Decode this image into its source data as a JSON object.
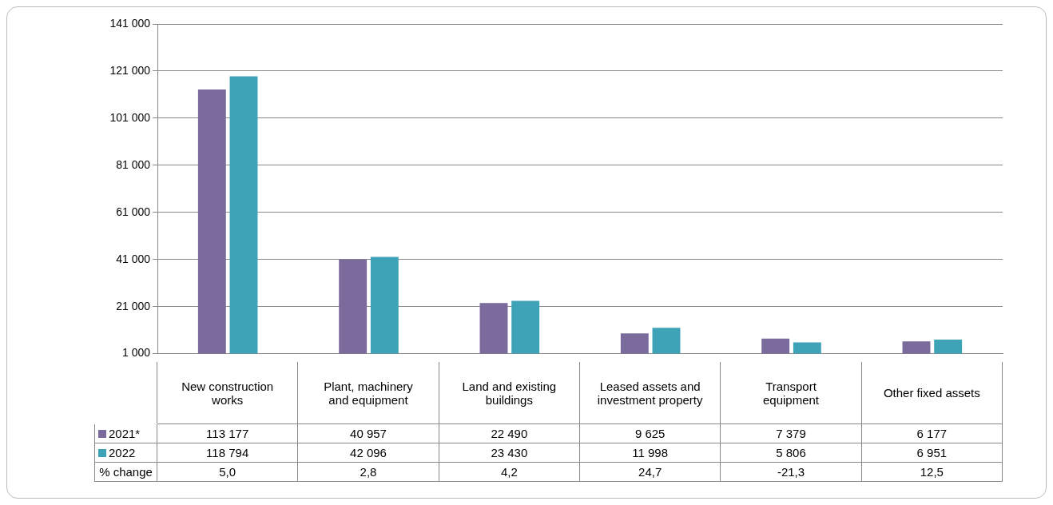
{
  "chart_data": {
    "type": "bar",
    "categories": [
      "New construction works",
      "Plant, machinery and equipment",
      "Land and existing buildings",
      "Leased assets and investment property",
      "Transport equipment",
      "Other fixed assets"
    ],
    "series": [
      {
        "name": "2021*",
        "color": "#7b6a9c",
        "values": [
          113177,
          40957,
          22490,
          9625,
          7379,
          6177
        ]
      },
      {
        "name": "2022",
        "color": "#3fa3b8",
        "values": [
          118794,
          42096,
          23430,
          11998,
          5806,
          6951
        ]
      }
    ],
    "ylim": [
      1000,
      141000
    ],
    "yticks": [
      {
        "value": 1000,
        "label": "1 000"
      },
      {
        "value": 21000,
        "label": "21 000"
      },
      {
        "value": 41000,
        "label": "41 000"
      },
      {
        "value": 61000,
        "label": "61 000"
      },
      {
        "value": 81000,
        "label": "81 000"
      },
      {
        "value": 101000,
        "label": "101 000"
      },
      {
        "value": 121000,
        "label": "121 000"
      },
      {
        "value": 141000,
        "label": "141 000"
      }
    ],
    "grid": "y",
    "legend": "bottom left",
    "data_labels": true,
    "annotations": [
      "% change",
      "5,0",
      "2,8",
      "4,2",
      "24,7",
      "-21,3",
      "12,5"
    ]
  }
}
